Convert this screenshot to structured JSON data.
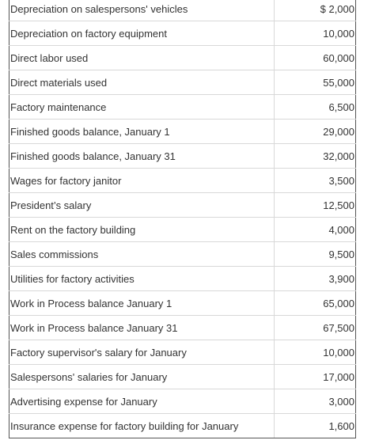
{
  "table": {
    "rows": [
      [
        "Depreciation on salespersons' vehicles",
        "$ 2,000"
      ],
      [
        "Depreciation on factory equipment",
        "10,000"
      ],
      [
        "Direct labor used",
        "60,000"
      ],
      [
        "Direct materials used",
        "55,000"
      ],
      [
        "Factory maintenance",
        "6,500"
      ],
      [
        "Finished goods balance, January 1",
        "29,000"
      ],
      [
        "Finished goods balance, January 31",
        "32,000"
      ],
      [
        "Wages for factory janitor",
        "3,500"
      ],
      [
        "President’s salary",
        "12,500"
      ],
      [
        "Rent on the factory building",
        "4,000"
      ],
      [
        "Sales commissions",
        "9,500"
      ],
      [
        "Utilities for factory activities",
        "3,900"
      ],
      [
        "Work in Process balance January 1",
        "65,000"
      ],
      [
        "Work in Process balance January 31",
        "67,500"
      ],
      [
        "Factory supervisor's salary for January",
        "10,000"
      ],
      [
        "Salespersons' salaries for January",
        "17,000"
      ],
      [
        "Advertising expense for January",
        "3,000"
      ],
      [
        "Insurance expense for factory building for January",
        "1,600"
      ]
    ]
  }
}
